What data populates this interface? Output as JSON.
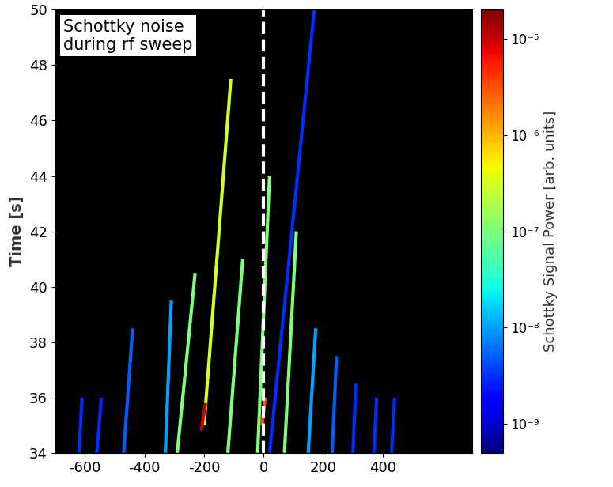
{
  "chart_data": {
    "type": "heatmap",
    "annotation": "Schottky noise\nduring rf sweep",
    "y_label": "Time [s]",
    "xlim": [
      -700,
      700
    ],
    "xticks": [
      -600,
      -400,
      -200,
      0,
      200,
      400
    ],
    "ylim": [
      34,
      50
    ],
    "yticks": [
      34,
      36,
      38,
      40,
      42,
      44,
      46,
      48,
      50
    ],
    "reference_x": 0,
    "streaks": [
      {
        "x": [
          -620,
          -610
        ],
        "time": [
          34,
          36
        ],
        "power": 3e-09
      },
      {
        "x": [
          -560,
          -545
        ],
        "time": [
          34,
          36
        ],
        "power": 3e-09
      },
      {
        "x": [
          -470,
          -440
        ],
        "time": [
          34,
          38.5
        ],
        "power": 5e-09
      },
      {
        "x": [
          -330,
          -310
        ],
        "time": [
          34,
          39.5
        ],
        "power": 1e-08
      },
      {
        "x": [
          -290,
          -230
        ],
        "time": [
          34,
          40.5
        ],
        "power": 1e-07
      },
      {
        "x": [
          -200,
          -110
        ],
        "time": [
          35,
          47.5
        ],
        "power": 3e-07
      },
      {
        "x": [
          -120,
          -70
        ],
        "time": [
          34,
          41
        ],
        "power": 1e-07
      },
      {
        "x": [
          -20,
          20
        ],
        "time": [
          34,
          44
        ],
        "power": 1e-07
      },
      {
        "x": [
          70,
          110
        ],
        "time": [
          34,
          42
        ],
        "power": 1e-07
      },
      {
        "x": [
          20,
          170
        ],
        "time": [
          34,
          50
        ],
        "power": 3e-09
      },
      {
        "x": [
          150,
          175
        ],
        "time": [
          34,
          38.5
        ],
        "power": 1e-08
      },
      {
        "x": [
          230,
          245
        ],
        "time": [
          34,
          37.5
        ],
        "power": 5e-09
      },
      {
        "x": [
          300,
          310
        ],
        "time": [
          34,
          36.5
        ],
        "power": 3e-09
      },
      {
        "x": [
          370,
          380
        ],
        "time": [
          34,
          36
        ],
        "power": 3e-09
      },
      {
        "x": [
          430,
          440
        ],
        "time": [
          34,
          36
        ],
        "power": 3e-09
      },
      {
        "x": [
          -210,
          -195
        ],
        "time": [
          34.8,
          35.8
        ],
        "power": 1e-05
      },
      {
        "x": [
          -5,
          5
        ],
        "time": [
          35,
          36
        ],
        "power": 3e-06
      }
    ],
    "colorbar_label": "Schottky Signal Power [arb. units]",
    "colorbar_range": [
      5e-10,
      2e-05
    ],
    "colorbar_ticks": [
      {
        "value": 1e-05,
        "label": "10⁻⁵"
      },
      {
        "value": 1e-06,
        "label": "10⁻⁶"
      },
      {
        "value": 1e-07,
        "label": "10⁻⁷"
      },
      {
        "value": 1e-08,
        "label": "10⁻⁸"
      },
      {
        "value": 1e-09,
        "label": "10⁻⁹"
      }
    ]
  }
}
